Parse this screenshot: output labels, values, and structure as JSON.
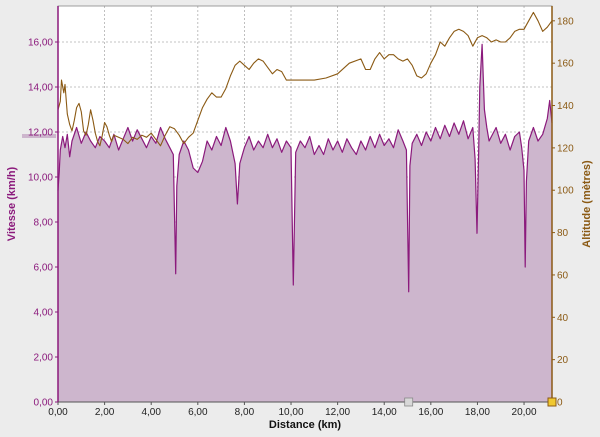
{
  "chart_data": {
    "type": "area",
    "xlabel": "Distance (km)",
    "ylabel_left": "Vitesse (km/h)",
    "ylabel_right": "Altitude (mètres)",
    "xlim": [
      0,
      21.2
    ],
    "ylim_left": [
      0,
      17.6
    ],
    "ylim_right": [
      0,
      187
    ],
    "x_ticks": [
      "0,00",
      "2,00",
      "4,00",
      "6,00",
      "8,00",
      "10,00",
      "12,00",
      "14,00",
      "16,00",
      "18,00",
      "20,00"
    ],
    "x_tick_values": [
      0,
      2,
      4,
      6,
      8,
      10,
      12,
      14,
      16,
      18,
      20
    ],
    "y_left_ticks": [
      "0,00",
      "2,00",
      "4,00",
      "6,00",
      "8,00",
      "10,00",
      "12,00",
      "14,00",
      "16,00"
    ],
    "y_left_tick_values": [
      0,
      2,
      4,
      6,
      8,
      10,
      12,
      14,
      16
    ],
    "y_right_ticks": [
      "0",
      "20",
      "40",
      "60",
      "80",
      "100",
      "120",
      "140",
      "160",
      "180"
    ],
    "y_right_tick_values": [
      0,
      20,
      40,
      60,
      80,
      100,
      120,
      140,
      160,
      180
    ],
    "grid": true,
    "colors": {
      "speed_fill": "#cdb6cd",
      "speed_line": "#8b1a7c",
      "altitude_line": "#8b5a14",
      "left_axis": "#8b1a7c",
      "right_axis": "#8b5a14",
      "plot_bg": "#ffffff",
      "grid": "#b0b0b0"
    },
    "series": [
      {
        "name": "Vitesse",
        "axis": "left",
        "x": [
          0.0,
          0.05,
          0.1,
          0.2,
          0.3,
          0.4,
          0.5,
          0.6,
          0.8,
          1.0,
          1.2,
          1.4,
          1.6,
          1.8,
          2.0,
          2.2,
          2.4,
          2.6,
          2.8,
          3.0,
          3.2,
          3.4,
          3.6,
          3.8,
          4.0,
          4.2,
          4.4,
          4.6,
          4.8,
          4.95,
          5.05,
          5.1,
          5.2,
          5.4,
          5.6,
          5.8,
          6.0,
          6.2,
          6.4,
          6.6,
          6.8,
          7.0,
          7.2,
          7.4,
          7.6,
          7.7,
          7.8,
          8.0,
          8.2,
          8.4,
          8.6,
          8.8,
          9.0,
          9.2,
          9.4,
          9.6,
          9.8,
          10.0,
          10.1,
          10.2,
          10.4,
          10.6,
          10.8,
          11.0,
          11.2,
          11.4,
          11.6,
          11.8,
          12.0,
          12.2,
          12.4,
          12.6,
          12.8,
          13.0,
          13.2,
          13.4,
          13.6,
          13.8,
          14.0,
          14.2,
          14.4,
          14.6,
          14.8,
          14.95,
          15.05,
          15.1,
          15.2,
          15.4,
          15.6,
          15.8,
          16.0,
          16.2,
          16.4,
          16.6,
          16.8,
          17.0,
          17.2,
          17.4,
          17.6,
          17.8,
          17.9,
          17.98,
          18.05,
          18.1,
          18.2,
          18.3,
          18.4,
          18.5,
          18.6,
          18.8,
          19.0,
          19.2,
          19.4,
          19.6,
          19.8,
          19.9,
          20.0,
          20.05,
          20.1,
          20.2,
          20.4,
          20.6,
          20.8,
          21.0,
          21.1,
          21.2
        ],
        "values": [
          9.4,
          10.2,
          11.2,
          11.8,
          11.3,
          11.9,
          10.9,
          11.6,
          12.2,
          11.5,
          12.0,
          11.6,
          11.3,
          11.8,
          11.6,
          11.3,
          11.9,
          11.2,
          11.7,
          12.2,
          11.6,
          12.1,
          11.7,
          11.3,
          11.8,
          11.5,
          12.2,
          11.7,
          11.3,
          11.0,
          5.7,
          9.6,
          11.0,
          11.6,
          11.2,
          10.4,
          10.2,
          10.7,
          11.6,
          11.2,
          11.8,
          11.4,
          12.2,
          11.6,
          10.6,
          8.8,
          10.6,
          11.3,
          11.8,
          11.2,
          11.6,
          11.3,
          11.9,
          11.3,
          11.7,
          11.1,
          11.6,
          11.3,
          5.2,
          11.1,
          11.6,
          11.3,
          11.8,
          11.0,
          11.4,
          11.0,
          11.7,
          11.2,
          11.6,
          11.1,
          11.7,
          11.3,
          11.0,
          11.6,
          11.2,
          11.8,
          11.3,
          11.9,
          11.4,
          11.7,
          11.3,
          12.1,
          11.6,
          11.2,
          4.9,
          10.5,
          11.5,
          11.9,
          11.4,
          12.0,
          11.6,
          12.2,
          11.7,
          12.3,
          11.8,
          12.4,
          11.9,
          12.5,
          11.7,
          12.2,
          10.8,
          7.5,
          11.0,
          14.0,
          15.9,
          13.0,
          12.2,
          11.6,
          11.8,
          12.2,
          11.5,
          11.9,
          11.2,
          11.8,
          12.0,
          11.3,
          10.3,
          6.0,
          9.8,
          11.6,
          12.2,
          11.6,
          11.9,
          12.6,
          13.4,
          12.4
        ]
      },
      {
        "name": "Altitude",
        "axis": "right",
        "x": [
          0.0,
          0.1,
          0.15,
          0.25,
          0.3,
          0.4,
          0.5,
          0.6,
          0.7,
          0.8,
          0.9,
          1.0,
          1.1,
          1.2,
          1.3,
          1.4,
          1.5,
          1.6,
          1.7,
          1.8,
          1.9,
          2.0,
          2.1,
          2.2,
          2.3,
          2.4,
          2.6,
          2.8,
          3.0,
          3.2,
          3.4,
          3.6,
          3.8,
          4.0,
          4.2,
          4.4,
          4.6,
          4.8,
          5.0,
          5.2,
          5.4,
          5.6,
          5.8,
          6.0,
          6.2,
          6.4,
          6.6,
          6.8,
          7.0,
          7.2,
          7.4,
          7.6,
          7.8,
          8.0,
          8.2,
          8.4,
          8.6,
          8.8,
          9.0,
          9.2,
          9.4,
          9.6,
          9.8,
          10.0,
          10.5,
          11.0,
          11.5,
          12.0,
          12.5,
          13.0,
          13.2,
          13.4,
          13.6,
          13.8,
          14.0,
          14.2,
          14.4,
          14.6,
          14.8,
          15.0,
          15.2,
          15.4,
          15.6,
          15.8,
          16.0,
          16.2,
          16.4,
          16.6,
          16.8,
          17.0,
          17.2,
          17.4,
          17.6,
          17.8,
          18.0,
          18.2,
          18.4,
          18.6,
          18.8,
          19.0,
          19.2,
          19.4,
          19.6,
          19.8,
          20.0,
          20.2,
          20.4,
          20.6,
          20.8,
          21.0,
          21.2
        ],
        "values": [
          138,
          142,
          152,
          146,
          150,
          136,
          131,
          128,
          133,
          139,
          141,
          137,
          128,
          126,
          131,
          138,
          133,
          127,
          123,
          121,
          126,
          132,
          130,
          126,
          123,
          126,
          125,
          124,
          122,
          125,
          124,
          126,
          125,
          127,
          124,
          121,
          126,
          130,
          129,
          126,
          122,
          125,
          127,
          133,
          139,
          143,
          146,
          144,
          144,
          148,
          154,
          159,
          161,
          159,
          157,
          160,
          162,
          161,
          158,
          155,
          157,
          156,
          152,
          152,
          152,
          152,
          153,
          155,
          160,
          162,
          157,
          157,
          162,
          165,
          162,
          164,
          164,
          162,
          161,
          162,
          159,
          154,
          153,
          155,
          160,
          164,
          170,
          168,
          172,
          175,
          176,
          175,
          173,
          168,
          172,
          173,
          172,
          170,
          171,
          170,
          170,
          172,
          175,
          176,
          176,
          180,
          184,
          180,
          175,
          177,
          180
        ]
      }
    ]
  }
}
